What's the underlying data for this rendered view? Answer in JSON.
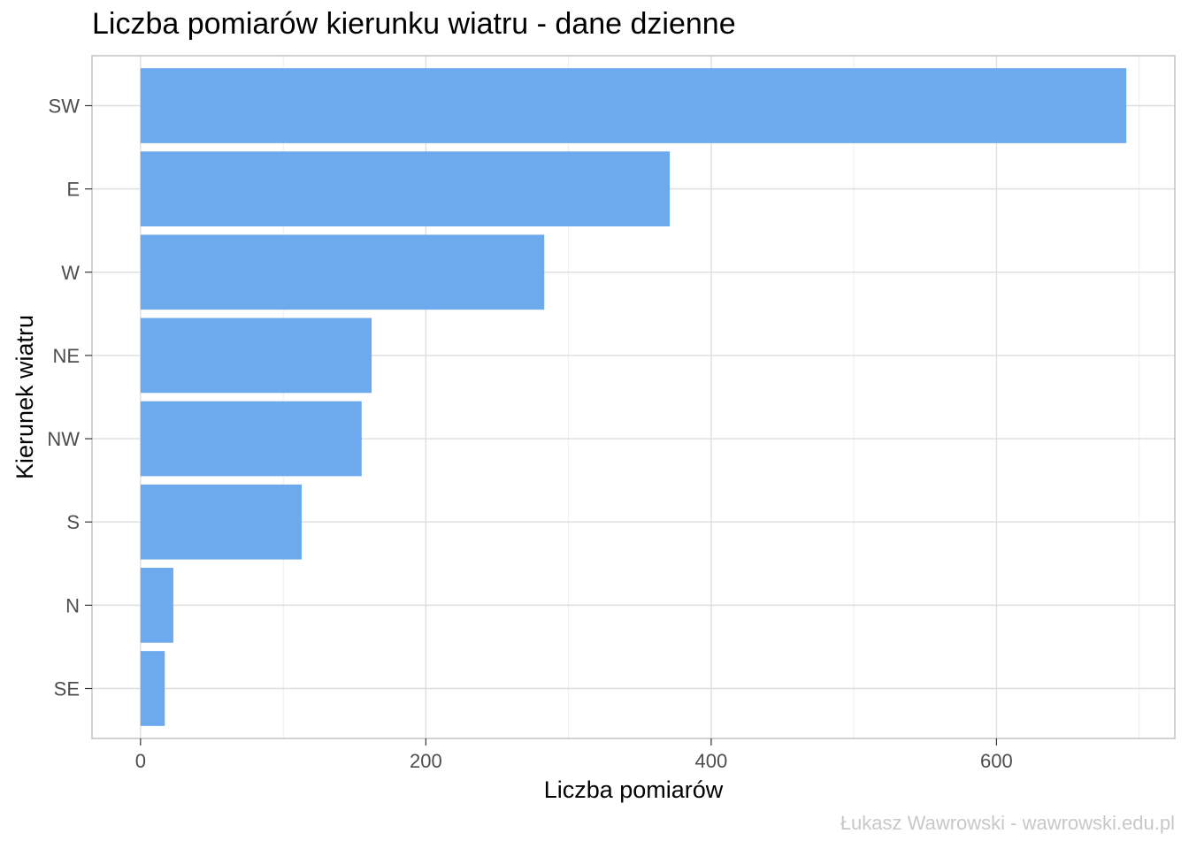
{
  "chart_data": {
    "type": "bar",
    "orientation": "horizontal",
    "title": "Liczba pomiarów kierunku wiatru - dane dzienne",
    "xlabel": "Liczba pomiarów",
    "ylabel": "Kierunek wiatru",
    "categories": [
      "SW",
      "E",
      "W",
      "NE",
      "NW",
      "S",
      "N",
      "SE"
    ],
    "values": [
      691,
      371,
      283,
      162,
      155,
      113,
      23,
      17
    ],
    "xlim": [
      -34,
      725
    ],
    "xticks": [
      0,
      200,
      400,
      600
    ],
    "grid": true,
    "bar_color": "#6CAAED",
    "caption": "Łukasz Wawrowski - wawrowski.edu.pl"
  }
}
